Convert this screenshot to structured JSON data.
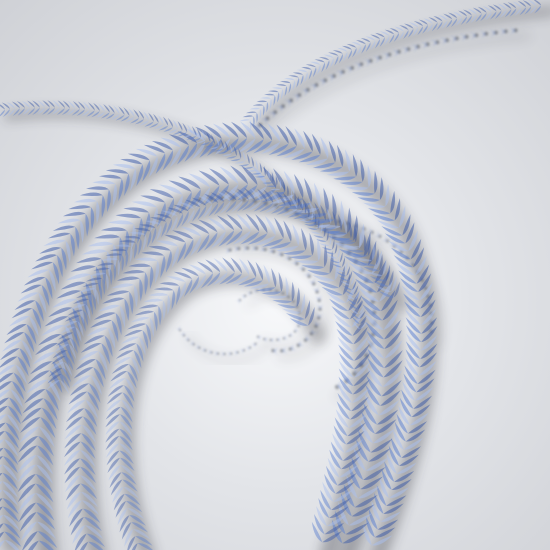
{
  "image": {
    "subject": "abstract-3d-spiral-of-leaf-chains",
    "colors": {
      "background_light": "#f8f9fb",
      "background_dark": "#cfd1d6",
      "leaf_blue": "#5b7fd0",
      "leaf_blue_dark": "#3a5aa8",
      "leaf_highlight": "#a9bfee",
      "shadow": "#2a2c33"
    }
  }
}
